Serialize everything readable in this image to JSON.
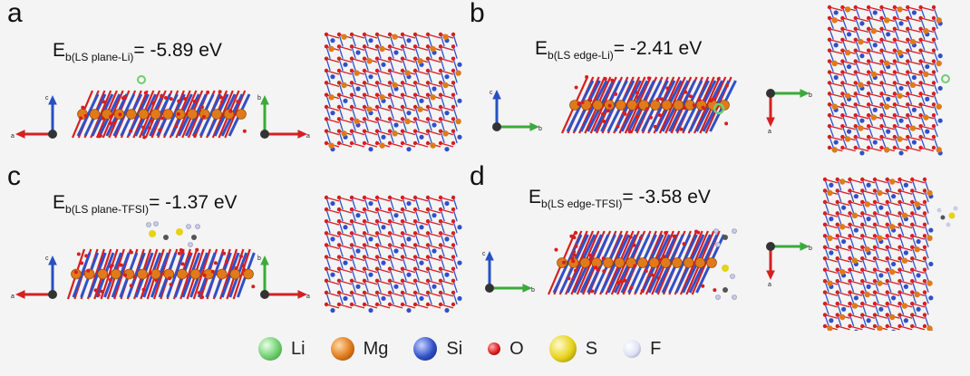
{
  "panels": {
    "a": {
      "label": "a",
      "energy_main": "E",
      "energy_sub": "b(LS plane-Li)",
      "energy_value": "= -5.89 eV"
    },
    "b": {
      "label": "b",
      "energy_main": "E",
      "energy_sub": "b(LS edge-Li)",
      "energy_value": "= -2.41 eV"
    },
    "c": {
      "label": "c",
      "energy_main": "E",
      "energy_sub": "b(LS plane-TFSI)",
      "energy_value": "= -1.37 eV"
    },
    "d": {
      "label": "d",
      "energy_main": "E",
      "energy_sub": "b(LS edge-TFSI)",
      "energy_value": "= -3.58 eV"
    }
  },
  "axis_labels": {
    "a": "a",
    "b": "b",
    "c": "c"
  },
  "legend": [
    {
      "label": "Li",
      "color": "#6fcf6f"
    },
    {
      "label": "Mg",
      "color": "#e07a1a"
    },
    {
      "label": "Si",
      "color": "#3050c8"
    },
    {
      "label": "O",
      "color": "#d81e1e"
    },
    {
      "label": "S",
      "color": "#e6d21a"
    },
    {
      "label": "F",
      "color": "#c8cce8"
    }
  ],
  "colors": {
    "Li": "#6fcf6f",
    "Mg": "#e07a1a",
    "Si": "#3050c8",
    "O": "#d81e1e",
    "S": "#e6d21a",
    "F": "#c8cce8",
    "axis_red": "#d62020",
    "axis_green": "#3aaa3a",
    "axis_blue": "#2850c0"
  }
}
